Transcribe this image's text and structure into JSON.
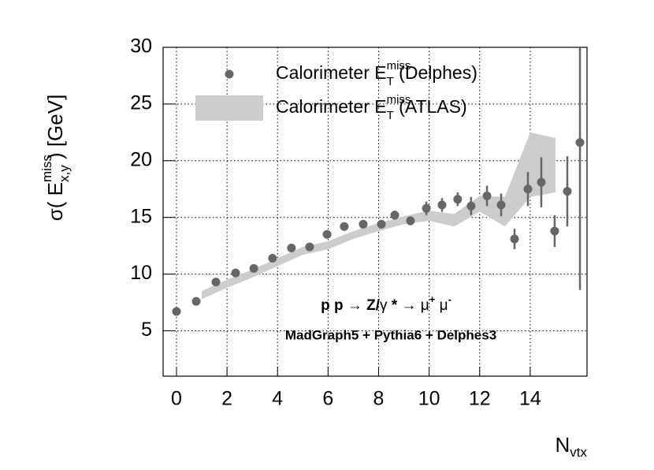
{
  "chart_data": {
    "type": "scatter",
    "y_label": {
      "pre": "σ( E",
      "sup": "miss",
      "sub": "x,y",
      "post": " ) [GeV]"
    },
    "x_label": {
      "base": "N",
      "sub": "vtx"
    },
    "annotations": [
      {
        "parts": [
          "p p ",
          "→",
          " Z/",
          "γ",
          " * ",
          "→",
          " ",
          "μ",
          "+",
          " ",
          "μ",
          "-"
        ]
      },
      {
        "text": "MadGraph5 + Pythia6 + Delphes3"
      }
    ],
    "xlim": [
      -0.53,
      16.25
    ],
    "ylim": [
      1,
      30
    ],
    "xticks": [
      0,
      2,
      4,
      6,
      8,
      10,
      12,
      14
    ],
    "yticks": [
      5,
      10,
      15,
      20,
      25,
      30
    ],
    "grid": true,
    "series": [
      {
        "name": {
          "base": "Calorimeter E",
          "sup": "miss",
          "sub": "T",
          "tail": " (Delphes)"
        },
        "color": "#666666",
        "kind": "points",
        "x": [
          0,
          0.78,
          1.56,
          2.34,
          3.06,
          3.8,
          4.55,
          5.27,
          5.96,
          6.64,
          7.39,
          8.11,
          8.64,
          9.26,
          9.89,
          10.51,
          11.13,
          11.66,
          12.29,
          12.85,
          13.38,
          13.91,
          14.44,
          14.97,
          15.47,
          15.97
        ],
        "values": [
          6.7,
          7.6,
          9.3,
          10.1,
          10.5,
          11.4,
          12.3,
          12.4,
          13.5,
          14.2,
          14.4,
          14.4,
          15.2,
          14.7,
          15.8,
          16.1,
          16.6,
          16.0,
          16.9,
          16.1,
          13.1,
          17.5,
          18.1,
          13.8,
          17.3,
          21.6
        ],
        "errors": [
          0.1,
          0.1,
          0.1,
          0.1,
          0.1,
          0.1,
          0.1,
          0.1,
          0.1,
          0.2,
          0.2,
          0.3,
          0.4,
          0.4,
          0.6,
          0.6,
          0.6,
          0.8,
          0.9,
          1.0,
          0.9,
          1.5,
          2.2,
          1.4,
          3.1,
          13
        ]
      },
      {
        "name": {
          "base": "Calorimeter E",
          "sup": "miss",
          "sub": "T",
          "tail": " (ATLAS)"
        },
        "color": "#cccccc",
        "kind": "band",
        "x": [
          1,
          2,
          3,
          4,
          5,
          6,
          7,
          8,
          9,
          10,
          11,
          12,
          13,
          14,
          15
        ],
        "lower": [
          7.8,
          8.8,
          9.7,
          10.7,
          11.7,
          12.2,
          13.1,
          13.8,
          14.4,
          14.7,
          14.2,
          15.5,
          14.2,
          16.8,
          17.2
        ],
        "upper": [
          8.5,
          9.5,
          10.4,
          11.4,
          12.4,
          12.9,
          13.8,
          14.5,
          15.1,
          15.6,
          15.3,
          16.9,
          16.8,
          22.5,
          22.0
        ]
      }
    ]
  }
}
